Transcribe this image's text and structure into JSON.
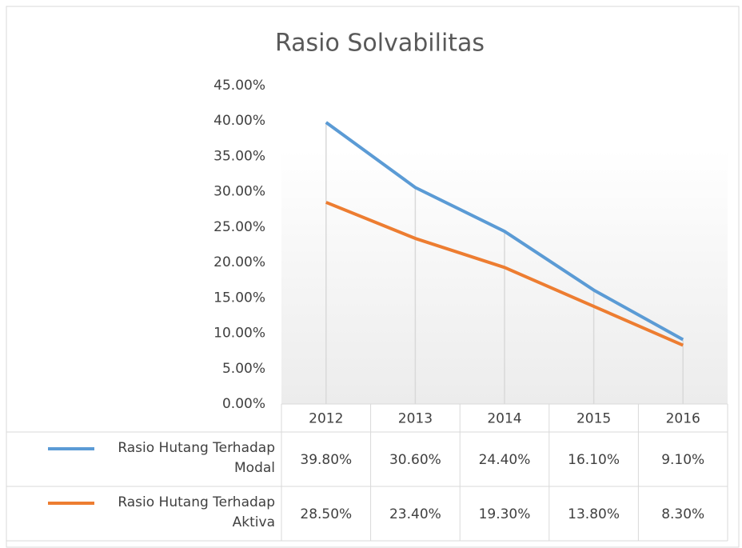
{
  "chart_data": {
    "type": "line",
    "title": "Rasio Solvabilitas",
    "categories": [
      "2012",
      "2013",
      "2014",
      "2015",
      "2016"
    ],
    "series": [
      {
        "name": "Rasio Hutang Terhadap Modal",
        "color": "#5b9bd5",
        "values": [
          39.8,
          30.6,
          24.4,
          16.1,
          9.1
        ],
        "value_labels": [
          "39.80%",
          "30.60%",
          "24.40%",
          "16.10%",
          "9.10%"
        ]
      },
      {
        "name": "Rasio Hutang Terhadap Aktiva",
        "color": "#ed7d31",
        "values": [
          28.5,
          23.4,
          19.3,
          13.8,
          8.3
        ],
        "value_labels": [
          "28.50%",
          "23.40%",
          "19.30%",
          "13.80%",
          "8.30%"
        ]
      }
    ],
    "ylim": [
      0,
      45
    ],
    "yticks": [
      {
        "value": 0,
        "label": "0.00%"
      },
      {
        "value": 5,
        "label": "5.00%"
      },
      {
        "value": 10,
        "label": "10.00%"
      },
      {
        "value": 15,
        "label": "15.00%"
      },
      {
        "value": 20,
        "label": "20.00%"
      },
      {
        "value": 25,
        "label": "25.00%"
      },
      {
        "value": 30,
        "label": "30.00%"
      },
      {
        "value": 35,
        "label": "35.00%"
      },
      {
        "value": 40,
        "label": "40.00%"
      },
      {
        "value": 45,
        "label": "45.00%"
      }
    ],
    "data_table": true
  }
}
